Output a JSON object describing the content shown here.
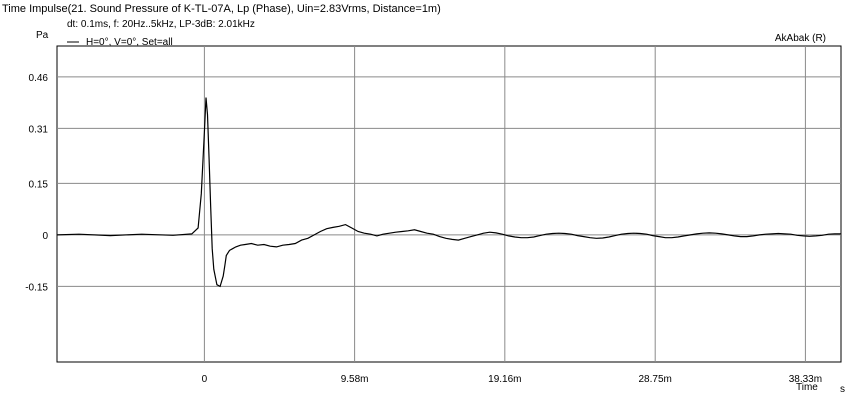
{
  "header": {
    "title": "Time Impulse(21. Sound Pressure of K-TL-07A, Lp (Phase), Uin=2.83Vrms, Distance=1m)",
    "params": "dt: 0.1ms, f: 20Hz..5kHz, LP-3dB: 2.01kHz",
    "watermark": "AkAbak (R)"
  },
  "chart_data": {
    "type": "line",
    "ylabel": "Pa",
    "xlabel": "Time",
    "xunit": "s",
    "xlim": [
      -0.0094,
      0.0406
    ],
    "ylim": [
      -0.37,
      0.55
    ],
    "grid": true,
    "legend_position": "top-left",
    "x_ticks": [
      {
        "value": 0,
        "label": "0"
      },
      {
        "value": 0.00958,
        "label": "9.58m"
      },
      {
        "value": 0.01916,
        "label": "19.16m"
      },
      {
        "value": 0.02875,
        "label": "28.75m"
      },
      {
        "value": 0.03833,
        "label": "38.33m"
      }
    ],
    "y_ticks": [
      {
        "value": 0.46,
        "label": "0.46"
      },
      {
        "value": 0.31,
        "label": "0.31"
      },
      {
        "value": 0.15,
        "label": "0.15"
      },
      {
        "value": 0,
        "label": "0"
      },
      {
        "value": -0.15,
        "label": "-0.15"
      }
    ],
    "series": [
      {
        "name": "H=0°, V=0°, Set=all",
        "color": "#000000",
        "x": [
          -0.0094,
          -0.008,
          -0.006,
          -0.004,
          -0.002,
          -0.0008,
          -0.0004,
          -0.0002,
          0,
          0.0001,
          0.0002,
          0.0003,
          0.0004,
          0.0005,
          0.0006,
          0.0008,
          0.001,
          0.0012,
          0.0013,
          0.0014,
          0.0016,
          0.0018,
          0.002,
          0.0023,
          0.0026,
          0.003,
          0.0034,
          0.0038,
          0.0042,
          0.0046,
          0.005,
          0.0054,
          0.0058,
          0.0062,
          0.0066,
          0.007,
          0.0074,
          0.0078,
          0.0082,
          0.0086,
          0.009,
          0.0094,
          0.0098,
          0.0102,
          0.0106,
          0.011,
          0.0114,
          0.0118,
          0.0122,
          0.0126,
          0.013,
          0.0134,
          0.0138,
          0.0142,
          0.0146,
          0.015,
          0.0154,
          0.0158,
          0.0162,
          0.0166,
          0.017,
          0.0174,
          0.0178,
          0.0182,
          0.0186,
          0.019,
          0.0194,
          0.0198,
          0.0202,
          0.0206,
          0.021,
          0.0214,
          0.0218,
          0.0222,
          0.0226,
          0.023,
          0.0234,
          0.0238,
          0.0242,
          0.0246,
          0.025,
          0.0254,
          0.0258,
          0.0262,
          0.0266,
          0.027,
          0.0274,
          0.0278,
          0.0282,
          0.0286,
          0.029,
          0.0294,
          0.0298,
          0.0302,
          0.0306,
          0.031,
          0.0314,
          0.0318,
          0.0322,
          0.0326,
          0.033,
          0.0334,
          0.0338,
          0.0342,
          0.0346,
          0.035,
          0.0354,
          0.0358,
          0.0362,
          0.0366,
          0.037,
          0.0374,
          0.0378,
          0.0382,
          0.0386,
          0.039,
          0.0394,
          0.0398,
          0.0402,
          0.0406
        ],
        "y": [
          0,
          0.002,
          -0.002,
          0.002,
          -0.001,
          0.003,
          0.02,
          0.12,
          0.3,
          0.4,
          0.35,
          0.22,
          0.08,
          -0.04,
          -0.1,
          -0.145,
          -0.15,
          -0.12,
          -0.09,
          -0.06,
          -0.045,
          -0.04,
          -0.035,
          -0.03,
          -0.028,
          -0.025,
          -0.03,
          -0.028,
          -0.033,
          -0.035,
          -0.03,
          -0.028,
          -0.025,
          -0.015,
          -0.01,
          0,
          0.01,
          0.018,
          0.022,
          0.025,
          0.03,
          0.02,
          0.01,
          0.005,
          0.002,
          -0.003,
          0.002,
          0.005,
          0.008,
          0.01,
          0.012,
          0.015,
          0.01,
          0.005,
          0.002,
          -0.005,
          -0.01,
          -0.013,
          -0.015,
          -0.01,
          -0.005,
          0,
          0.005,
          0.008,
          0.006,
          0.002,
          -0.003,
          -0.006,
          -0.008,
          -0.008,
          -0.006,
          -0.002,
          0.002,
          0.004,
          0.005,
          0.004,
          0.002,
          -0.002,
          -0.005,
          -0.008,
          -0.01,
          -0.009,
          -0.006,
          -0.002,
          0.002,
          0.004,
          0.005,
          0.004,
          0.002,
          -0.002,
          -0.005,
          -0.008,
          -0.008,
          -0.006,
          -0.003,
          0,
          0.003,
          0.005,
          0.006,
          0.005,
          0.003,
          0,
          -0.003,
          -0.005,
          -0.005,
          -0.003,
          0,
          0.002,
          0.003,
          0.004,
          0.003,
          0.002,
          -0.001,
          -0.003,
          -0.004,
          -0.003,
          -0.001,
          0.002,
          0.003,
          0.003
        ]
      }
    ]
  }
}
